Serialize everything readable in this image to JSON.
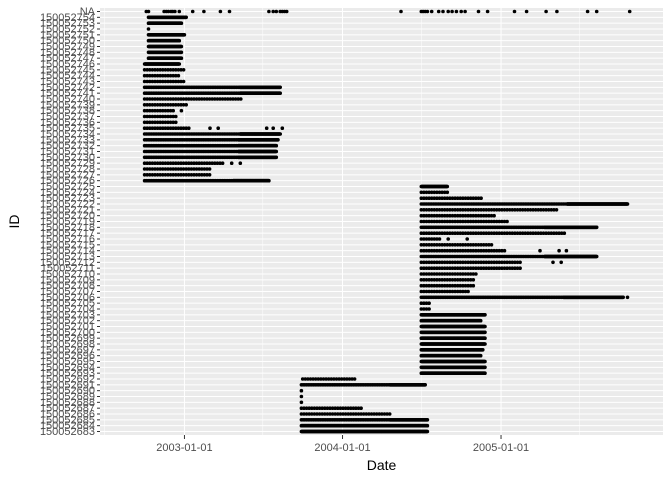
{
  "chart_data": {
    "type": "scatter",
    "xlabel": "Date",
    "ylabel": "ID",
    "x_ticks": [
      "2003-01-01",
      "2004-01-01",
      "2005-01-01"
    ],
    "xlim": [
      "2002-06-20",
      "2006-01-10"
    ],
    "grid": true,
    "legend": "none",
    "point_color": "#000000",
    "panel_color": "#ebebeb",
    "grid_color": "#ffffff",
    "y_ids": [
      "150052683",
      "150052684",
      "150052685",
      "150052686",
      "150052687",
      "150052688",
      "150052689",
      "150052690",
      "150052691",
      "150052692",
      "150052693",
      "150052694",
      "150052695",
      "150052696",
      "150052697",
      "150052698",
      "150052699",
      "150052700",
      "150052701",
      "150052702",
      "150052703",
      "150052704",
      "150052705",
      "150052706",
      "150052707",
      "150052708",
      "150052709",
      "150052710",
      "150052711",
      "150052712",
      "150052713",
      "150052714",
      "150052715",
      "150052716",
      "150052717",
      "150052718",
      "150052719",
      "150052720",
      "150052721",
      "150052722",
      "150052723",
      "150052724",
      "150052725",
      "150052726",
      "150052727",
      "150052728",
      "150052729",
      "150052730",
      "150052731",
      "150052732",
      "150052733",
      "150052734",
      "150052735",
      "150052736",
      "150052737",
      "150052738",
      "150052739",
      "150052740",
      "150052741",
      "150052742",
      "150052743",
      "150052744",
      "150052745",
      "150052746",
      "150052747",
      "150052748",
      "150052749",
      "150052750",
      "150052751",
      "150052752",
      "150052753",
      "150052754",
      "NA"
    ],
    "y_tick_labels": [
      "150052683",
      "150052684",
      "150052685",
      "150052686",
      "150052687",
      "150052688",
      "150052689",
      "150052690",
      "150052691",
      "150052692",
      "150052693",
      "150052694",
      "150052695",
      "150052696",
      "150052697",
      "150052698",
      "150052699",
      "150052700",
      "150052701",
      "150052702",
      "150052703",
      "150052704",
      "150052705",
      "150052706",
      "150052707",
      "150052708",
      "150052709",
      "150052710",
      "150052711",
      "150052712",
      "150052713",
      "150052714",
      "150052715",
      "150052716",
      "150052717",
      "150052718",
      "150052719",
      "150052720",
      "150052721",
      "150052722",
      "150052723",
      "150052724",
      "150052725",
      "150052726",
      "150052727",
      "150052728",
      "150052729",
      "150052730",
      "150052731",
      "150052732",
      "150052733",
      "150052734",
      "150052735",
      "150052736",
      "150052737",
      "150052738",
      "150052739",
      "150052740",
      "150052741",
      "150052742",
      "150052743",
      "150052744",
      "150052745",
      "150052746",
      "150052747",
      "150052748",
      "150052749",
      "150052750",
      "150052751",
      "150052752",
      "150052753",
      "150052754",
      "NA"
    ],
    "series_ranges": [
      {
        "id": "150052683",
        "start": "2003-09-28",
        "end": "2004-07-15",
        "density": "dense",
        "extra": []
      },
      {
        "id": "150052684",
        "start": "2003-09-28",
        "end": "2004-07-15",
        "density": "dense",
        "extra": []
      },
      {
        "id": "150052685",
        "start": "2003-09-28",
        "end": "2004-07-15",
        "density": "mixed",
        "extra": []
      },
      {
        "id": "150052686",
        "start": "2003-09-28",
        "end": "2004-04-20",
        "density": "sparse",
        "extra": []
      },
      {
        "id": "150052687",
        "start": "2003-09-28",
        "end": "2004-02-15",
        "density": "sparse",
        "extra": []
      },
      {
        "id": "150052688",
        "start": "2003-09-28",
        "end": "2003-09-30",
        "density": "sparse",
        "extra": []
      },
      {
        "id": "150052689",
        "start": "2003-09-28",
        "end": "2003-09-30",
        "density": "sparse",
        "extra": []
      },
      {
        "id": "150052690",
        "start": "2003-09-28",
        "end": "2003-09-30",
        "density": "sparse",
        "extra": []
      },
      {
        "id": "150052691",
        "start": "2003-09-28",
        "end": "2004-07-10",
        "density": "mixed",
        "extra": []
      },
      {
        "id": "150052692",
        "start": "2003-10-01",
        "end": "2004-02-01",
        "density": "sparse",
        "extra": []
      },
      {
        "id": "150052693",
        "start": "2004-07-01",
        "end": "2004-11-25",
        "density": "dense",
        "extra": []
      },
      {
        "id": "150052694",
        "start": "2004-07-01",
        "end": "2004-11-25",
        "density": "dense",
        "extra": []
      },
      {
        "id": "150052695",
        "start": "2004-07-01",
        "end": "2004-11-25",
        "density": "dense",
        "extra": []
      },
      {
        "id": "150052696",
        "start": "2004-07-01",
        "end": "2004-11-15",
        "density": "dense",
        "extra": []
      },
      {
        "id": "150052697",
        "start": "2004-07-01",
        "end": "2004-11-20",
        "density": "dense",
        "extra": []
      },
      {
        "id": "150052698",
        "start": "2004-07-01",
        "end": "2004-11-25",
        "density": "dense",
        "extra": []
      },
      {
        "id": "150052699",
        "start": "2004-07-01",
        "end": "2004-11-25",
        "density": "dense",
        "extra": []
      },
      {
        "id": "150052700",
        "start": "2004-07-01",
        "end": "2004-11-25",
        "density": "dense",
        "extra": []
      },
      {
        "id": "150052701",
        "start": "2004-07-01",
        "end": "2004-11-25",
        "density": "dense",
        "extra": []
      },
      {
        "id": "150052702",
        "start": "2004-07-01",
        "end": "2004-11-15",
        "density": "dense",
        "extra": []
      },
      {
        "id": "150052703",
        "start": "2004-07-01",
        "end": "2004-11-25",
        "density": "dense",
        "extra": []
      },
      {
        "id": "150052704",
        "start": "2004-07-01",
        "end": "2004-07-20",
        "density": "sparse",
        "extra": []
      },
      {
        "id": "150052705",
        "start": "2004-07-01",
        "end": "2004-07-20",
        "density": "sparse",
        "extra": []
      },
      {
        "id": "150052706",
        "start": "2004-07-01",
        "end": "2005-10-10",
        "density": "mixed",
        "extra": [
          "2005-10-20"
        ]
      },
      {
        "id": "150052707",
        "start": "2004-07-01",
        "end": "2004-10-20",
        "density": "sparse",
        "extra": []
      },
      {
        "id": "150052708",
        "start": "2004-07-01",
        "end": "2004-11-01",
        "density": "sparse",
        "extra": []
      },
      {
        "id": "150052709",
        "start": "2004-07-01",
        "end": "2004-11-01",
        "density": "sparse",
        "extra": []
      },
      {
        "id": "150052710",
        "start": "2004-07-01",
        "end": "2004-11-05",
        "density": "sparse",
        "extra": []
      },
      {
        "id": "150052711",
        "start": "2004-07-01",
        "end": "2005-02-15",
        "density": "sparse",
        "extra": []
      },
      {
        "id": "150052712",
        "start": "2004-07-01",
        "end": "2005-02-15",
        "density": "sparse",
        "extra": [
          "2005-05-01",
          "2005-05-20"
        ]
      },
      {
        "id": "150052713",
        "start": "2004-07-01",
        "end": "2005-08-10",
        "density": "mixed",
        "extra": []
      },
      {
        "id": "150052714",
        "start": "2004-07-01",
        "end": "2005-01-10",
        "density": "sparse",
        "extra": [
          "2005-04-01",
          "2005-05-15",
          "2005-06-01"
        ]
      },
      {
        "id": "150052715",
        "start": "2004-07-01",
        "end": "2004-12-15",
        "density": "sparse",
        "extra": []
      },
      {
        "id": "150052716",
        "start": "2004-07-01",
        "end": "2004-08-15",
        "density": "sparse",
        "extra": [
          "2004-09-01",
          "2004-10-15"
        ]
      },
      {
        "id": "150052717",
        "start": "2004-07-01",
        "end": "2005-06-01",
        "density": "sparse",
        "extra": []
      },
      {
        "id": "150052718",
        "start": "2004-07-01",
        "end": "2005-08-10",
        "density": "mixed",
        "extra": []
      },
      {
        "id": "150052719",
        "start": "2004-07-01",
        "end": "2005-01-15",
        "density": "sparse",
        "extra": []
      },
      {
        "id": "150052720",
        "start": "2004-07-01",
        "end": "2004-12-20",
        "density": "sparse",
        "extra": []
      },
      {
        "id": "150052721",
        "start": "2004-07-01",
        "end": "2005-05-10",
        "density": "sparse",
        "extra": []
      },
      {
        "id": "150052722",
        "start": "2004-07-01",
        "end": "2005-10-20",
        "density": "mixed",
        "extra": []
      },
      {
        "id": "150052723",
        "start": "2004-07-01",
        "end": "2004-11-20",
        "density": "sparse",
        "extra": []
      },
      {
        "id": "150052724",
        "start": "2004-07-01",
        "end": "2004-09-01",
        "density": "sparse",
        "extra": []
      },
      {
        "id": "150052725",
        "start": "2004-07-01",
        "end": "2004-08-30",
        "density": "dense",
        "extra": []
      },
      {
        "id": "150052726",
        "start": "2002-10-01",
        "end": "2003-07-15",
        "density": "mixed",
        "extra": []
      },
      {
        "id": "150052727",
        "start": "2002-10-01",
        "end": "2003-03-01",
        "density": "sparse",
        "extra": []
      },
      {
        "id": "150052728",
        "start": "2002-10-01",
        "end": "2003-03-01",
        "density": "sparse",
        "extra": []
      },
      {
        "id": "150052729",
        "start": "2002-10-01",
        "end": "2003-04-01",
        "density": "sparse",
        "extra": [
          "2003-04-20",
          "2003-05-10"
        ]
      },
      {
        "id": "150052730",
        "start": "2002-10-01",
        "end": "2003-08-01",
        "density": "mixed",
        "extra": []
      },
      {
        "id": "150052731",
        "start": "2002-10-01",
        "end": "2003-08-01",
        "density": "mixed",
        "extra": []
      },
      {
        "id": "150052732",
        "start": "2002-10-01",
        "end": "2003-08-01",
        "density": "mixed",
        "extra": []
      },
      {
        "id": "150052733",
        "start": "2002-10-01",
        "end": "2003-08-05",
        "density": "mixed",
        "extra": []
      },
      {
        "id": "150052734",
        "start": "2002-10-01",
        "end": "2003-08-10",
        "density": "mixed",
        "extra": []
      },
      {
        "id": "150052735",
        "start": "2002-10-01",
        "end": "2003-01-15",
        "density": "sparse",
        "extra": [
          "2003-03-01",
          "2003-03-20",
          "2003-07-10",
          "2003-07-25",
          "2003-08-15"
        ]
      },
      {
        "id": "150052736",
        "start": "2002-10-01",
        "end": "2002-12-15",
        "density": "sparse",
        "extra": []
      },
      {
        "id": "150052737",
        "start": "2002-10-01",
        "end": "2002-12-15",
        "density": "sparse",
        "extra": []
      },
      {
        "id": "150052738",
        "start": "2002-10-01",
        "end": "2002-12-10",
        "density": "sparse",
        "extra": [
          "2002-12-25"
        ]
      },
      {
        "id": "150052739",
        "start": "2002-10-01",
        "end": "2003-01-10",
        "density": "sparse",
        "extra": []
      },
      {
        "id": "150052740",
        "start": "2002-10-01",
        "end": "2003-05-15",
        "density": "sparse",
        "extra": []
      },
      {
        "id": "150052741",
        "start": "2002-10-01",
        "end": "2003-08-10",
        "density": "mixed",
        "extra": []
      },
      {
        "id": "150052742",
        "start": "2002-10-01",
        "end": "2003-08-10",
        "density": "mixed",
        "extra": []
      },
      {
        "id": "150052743",
        "start": "2002-10-01",
        "end": "2003-01-01",
        "density": "sparse",
        "extra": []
      },
      {
        "id": "150052744",
        "start": "2002-10-01",
        "end": "2002-12-20",
        "density": "sparse",
        "extra": []
      },
      {
        "id": "150052745",
        "start": "2002-10-01",
        "end": "2003-01-01",
        "density": "sparse",
        "extra": []
      },
      {
        "id": "150052746",
        "start": "2002-10-01",
        "end": "2002-12-20",
        "density": "dense",
        "extra": []
      },
      {
        "id": "150052747",
        "start": "2002-10-10",
        "end": "2002-12-25",
        "density": "dense",
        "extra": []
      },
      {
        "id": "150052748",
        "start": "2002-10-10",
        "end": "2002-12-25",
        "density": "dense",
        "extra": []
      },
      {
        "id": "150052749",
        "start": "2002-10-10",
        "end": "2002-12-25",
        "density": "dense",
        "extra": []
      },
      {
        "id": "150052750",
        "start": "2002-10-10",
        "end": "2002-12-20",
        "density": "dense",
        "extra": []
      },
      {
        "id": "150052751",
        "start": "2002-10-10",
        "end": "2003-01-01",
        "density": "dense",
        "extra": []
      },
      {
        "id": "150052752",
        "start": "2002-10-10",
        "end": "2002-10-15",
        "density": "sparse",
        "extra": []
      },
      {
        "id": "150052753",
        "start": "2002-10-10",
        "end": "2002-12-25",
        "density": "dense",
        "extra": []
      },
      {
        "id": "150052754",
        "start": "2002-10-10",
        "end": "2003-01-05",
        "density": "dense",
        "extra": []
      }
    ],
    "na_points": [
      "2002-10-05",
      "2002-10-10",
      "2002-11-15",
      "2002-11-20",
      "2002-11-25",
      "2002-12-01",
      "2002-12-05",
      "2002-12-10",
      "2002-12-20",
      "2003-01-20",
      "2003-02-15",
      "2003-03-25",
      "2003-04-15",
      "2003-07-15",
      "2003-07-25",
      "2003-08-01",
      "2003-08-10",
      "2003-08-15",
      "2003-08-20",
      "2003-08-25",
      "2004-05-15",
      "2004-07-01",
      "2004-07-05",
      "2004-07-10",
      "2004-07-15",
      "2004-07-25",
      "2004-08-10",
      "2004-08-20",
      "2004-09-01",
      "2004-09-10",
      "2004-09-20",
      "2004-10-01",
      "2004-10-10",
      "2004-11-10",
      "2004-12-01",
      "2005-02-01",
      "2005-03-01",
      "2005-04-15",
      "2005-05-10",
      "2005-07-20",
      "2005-08-10",
      "2005-10-25"
    ]
  }
}
